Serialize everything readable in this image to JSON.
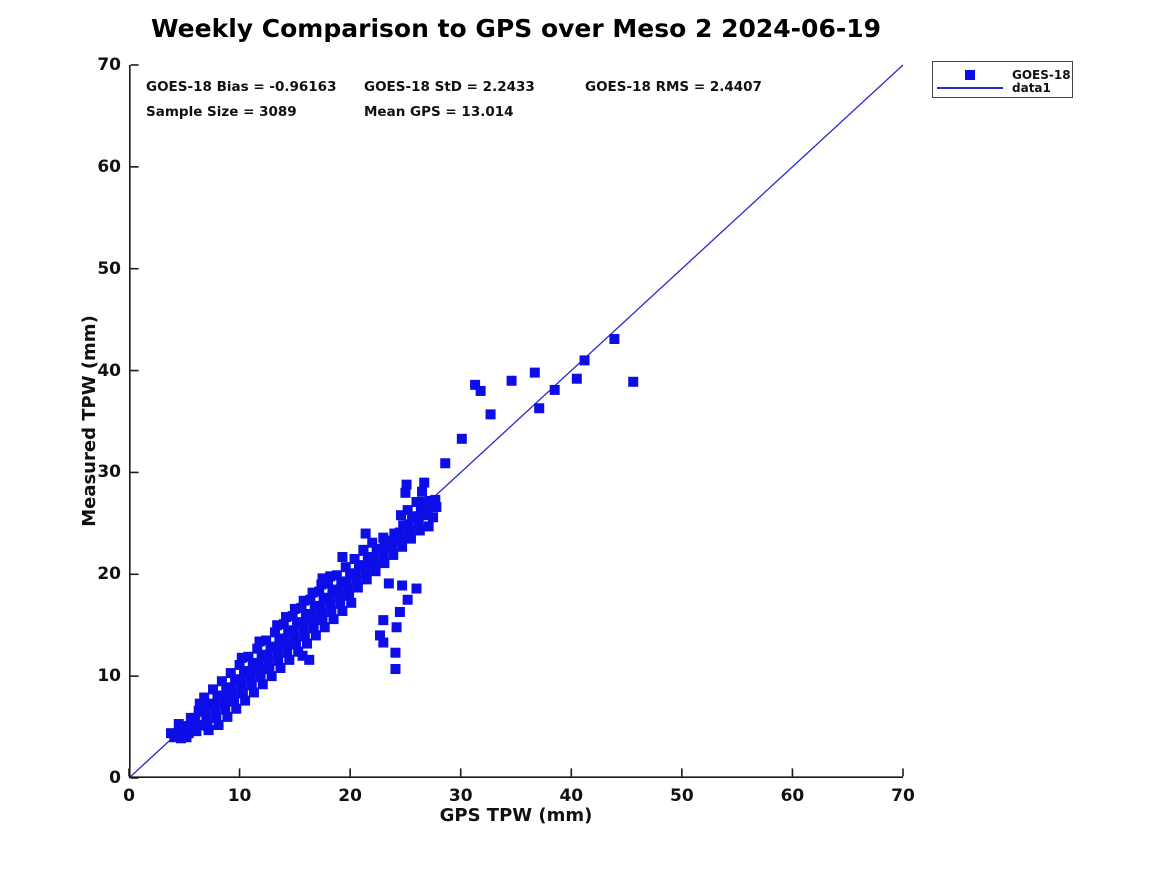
{
  "title": "Weekly Comparison to GPS over Meso 2 2024-06-19",
  "stats": {
    "bias": "GOES-18 Bias = -0.96163",
    "std": "GOES-18 StD = 2.2433",
    "rms": "GOES-18 RMS = 2.4407",
    "sample_size": "Sample Size = 3089",
    "mean_gps": "Mean GPS = 13.014"
  },
  "axes": {
    "xlabel": "GPS TPW (mm)",
    "ylabel": "Measured TPW (mm)",
    "xlim": [
      0,
      70
    ],
    "ylim": [
      0,
      70
    ],
    "xticks": [
      0,
      10,
      20,
      30,
      40,
      50,
      60,
      70
    ],
    "yticks": [
      0,
      10,
      20,
      30,
      40,
      50,
      60,
      70
    ]
  },
  "legend": {
    "entries": [
      {
        "label": "GOES-18",
        "type": "marker"
      },
      {
        "label": "data1",
        "type": "line"
      }
    ]
  },
  "colors": {
    "marker": "#0d0de8",
    "line": "#2929c8",
    "axis": "#1a1a1a",
    "text": "#111111"
  },
  "chart_data": {
    "type": "scatter",
    "title": "Weekly Comparison to GPS over Meso 2 2024-06-19",
    "xlabel": "GPS TPW (mm)",
    "ylabel": "Measured TPW (mm)",
    "xlim": [
      0,
      70
    ],
    "ylim": [
      0,
      70
    ],
    "grid": false,
    "legend_position": "top-right-outside",
    "annotations": [
      "GOES-18 Bias = -0.96163",
      "GOES-18 StD = 2.2433",
      "GOES-18 RMS = 2.4407",
      "Sample Size = 3089",
      "Mean GPS = 13.014"
    ],
    "series": [
      {
        "name": "GOES-18",
        "type": "scatter",
        "marker": "square",
        "points": [
          [
            3.8,
            4.4
          ],
          [
            4.1,
            4
          ],
          [
            4.6,
            4.6
          ],
          [
            4.7,
            3.9
          ],
          [
            4.5,
            5.3
          ],
          [
            5.4,
            4.4
          ],
          [
            5.3,
            5.1
          ],
          [
            5.6,
            5.9
          ],
          [
            5.2,
            4
          ],
          [
            6.2,
            5.2
          ],
          [
            6,
            5.9
          ],
          [
            6.3,
            6.6
          ],
          [
            6.1,
            4.6
          ],
          [
            6.4,
            7.3
          ],
          [
            7,
            5.8
          ],
          [
            6.9,
            6.5
          ],
          [
            7.2,
            7.2
          ],
          [
            7.1,
            5.1
          ],
          [
            6.8,
            7.9
          ],
          [
            7.2,
            4.7
          ],
          [
            7.8,
            6.6
          ],
          [
            7.7,
            7.3
          ],
          [
            8,
            8
          ],
          [
            7.9,
            5.9
          ],
          [
            7.6,
            8.7
          ],
          [
            8.1,
            5.2
          ],
          [
            8.6,
            7.4
          ],
          [
            8.5,
            8.1
          ],
          [
            8.8,
            8.8
          ],
          [
            8.7,
            6.7
          ],
          [
            8.4,
            9.5
          ],
          [
            8.9,
            6
          ],
          [
            9.4,
            8.2
          ],
          [
            9.3,
            8.9
          ],
          [
            9.6,
            9.6
          ],
          [
            9.5,
            7.5
          ],
          [
            9.2,
            10.3
          ],
          [
            9.7,
            6.8
          ],
          [
            10.2,
            9
          ],
          [
            10.1,
            9.7
          ],
          [
            10.4,
            10.4
          ],
          [
            10.3,
            8.3
          ],
          [
            10,
            11.1
          ],
          [
            10.5,
            7.6
          ],
          [
            10.2,
            11.8
          ],
          [
            11,
            9.8
          ],
          [
            10.9,
            10.5
          ],
          [
            11.2,
            11.2
          ],
          [
            11.1,
            9.1
          ],
          [
            10.8,
            11.9
          ],
          [
            11.3,
            8.4
          ],
          [
            11.8,
            10.6
          ],
          [
            11.7,
            11.3
          ],
          [
            12,
            12
          ],
          [
            11.9,
            9.9
          ],
          [
            11.6,
            12.7
          ],
          [
            12.1,
            9.2
          ],
          [
            11.8,
            13.4
          ],
          [
            12.6,
            11.4
          ],
          [
            12.5,
            12.1
          ],
          [
            12.8,
            12.8
          ],
          [
            12.7,
            10.7
          ],
          [
            12.4,
            13.5
          ],
          [
            12.9,
            10
          ],
          [
            13.4,
            12.2
          ],
          [
            13.3,
            12.9
          ],
          [
            13.6,
            13.6
          ],
          [
            13.5,
            11.5
          ],
          [
            13.2,
            14.3
          ],
          [
            13.7,
            10.8
          ],
          [
            13.4,
            15
          ],
          [
            14.2,
            13
          ],
          [
            14.1,
            13.7
          ],
          [
            14.4,
            14.4
          ],
          [
            14.3,
            12.3
          ],
          [
            14,
            15.1
          ],
          [
            14.5,
            11.6
          ],
          [
            14.2,
            15.8
          ],
          [
            15,
            13.8
          ],
          [
            14.9,
            14.5
          ],
          [
            15.2,
            15.2
          ],
          [
            15.1,
            13.1
          ],
          [
            14.8,
            15.9
          ],
          [
            15.3,
            12.4
          ],
          [
            15,
            16.6
          ],
          [
            15.8,
            14.6
          ],
          [
            15.7,
            15.3
          ],
          [
            16,
            16
          ],
          [
            15.9,
            13.9
          ],
          [
            15.6,
            16.7
          ],
          [
            16.1,
            13.2
          ],
          [
            15.8,
            17.4
          ],
          [
            16.6,
            15.4
          ],
          [
            16.5,
            16.1
          ],
          [
            16.8,
            16.8
          ],
          [
            16.7,
            14.7
          ],
          [
            16.4,
            17.5
          ],
          [
            16.9,
            14
          ],
          [
            16.6,
            18.2
          ],
          [
            17.4,
            16.2
          ],
          [
            17.3,
            16.9
          ],
          [
            17.6,
            17.6
          ],
          [
            17.5,
            15.5
          ],
          [
            17.2,
            18.3
          ],
          [
            17.7,
            14.8
          ],
          [
            17.4,
            19
          ],
          [
            17.5,
            19.6
          ],
          [
            18.2,
            17
          ],
          [
            18.1,
            17.7
          ],
          [
            18.4,
            18.4
          ],
          [
            18.3,
            16.3
          ],
          [
            18,
            19.1
          ],
          [
            18.5,
            15.6
          ],
          [
            18.2,
            19.8
          ],
          [
            19,
            17.8
          ],
          [
            18.9,
            18.5
          ],
          [
            19.2,
            19.2
          ],
          [
            19.1,
            17.1
          ],
          [
            18.8,
            19.9
          ],
          [
            19.3,
            16.4
          ],
          [
            19.8,
            18.6
          ],
          [
            19.7,
            19.3
          ],
          [
            20,
            20
          ],
          [
            19.9,
            17.9
          ],
          [
            19.6,
            20.7
          ],
          [
            20.1,
            17.2
          ],
          [
            20.6,
            19.4
          ],
          [
            20.5,
            20.1
          ],
          [
            20.8,
            20.8
          ],
          [
            20.7,
            18.7
          ],
          [
            20.4,
            21.5
          ],
          [
            21.4,
            20.2
          ],
          [
            21.3,
            20.9
          ],
          [
            21.6,
            21.6
          ],
          [
            21.5,
            19.5
          ],
          [
            21.2,
            22.3
          ],
          [
            21.4,
            24
          ],
          [
            22.2,
            21
          ],
          [
            22.1,
            21.7
          ],
          [
            22.4,
            22.4
          ],
          [
            22.3,
            20.3
          ],
          [
            22,
            23.1
          ],
          [
            23,
            21.8
          ],
          [
            22.9,
            22.5
          ],
          [
            23.2,
            23.2
          ],
          [
            23.1,
            21.1
          ],
          [
            23,
            23.6
          ],
          [
            23.8,
            22.6
          ],
          [
            23.7,
            23.3
          ],
          [
            24,
            24
          ],
          [
            23.9,
            21.9
          ],
          [
            24.6,
            23.4
          ],
          [
            24.5,
            24.1
          ],
          [
            24.8,
            24.8
          ],
          [
            24.7,
            22.7
          ],
          [
            24.6,
            25.8
          ],
          [
            25.4,
            24.2
          ],
          [
            25.3,
            24.9
          ],
          [
            25.6,
            25.6
          ],
          [
            25.5,
            23.5
          ],
          [
            25.2,
            26.3
          ],
          [
            26.2,
            25
          ],
          [
            26.1,
            25.7
          ],
          [
            26.4,
            26.4
          ],
          [
            26.3,
            24.3
          ],
          [
            26,
            27.1
          ],
          [
            27,
            25.8
          ],
          [
            26.9,
            26.5
          ],
          [
            27.2,
            27.2
          ],
          [
            27.1,
            24.7
          ],
          [
            27.8,
            26.6
          ],
          [
            27.7,
            27.3
          ],
          [
            30.1,
            33.3
          ],
          [
            31.3,
            38.6
          ],
          [
            31.8,
            38
          ],
          [
            32.7,
            35.7
          ],
          [
            34.6,
            39
          ],
          [
            36.7,
            39.8
          ],
          [
            37.1,
            36.3
          ],
          [
            38.5,
            38.1
          ],
          [
            40.5,
            39.2
          ],
          [
            41.2,
            41
          ],
          [
            43.9,
            43.1
          ],
          [
            45.6,
            38.9
          ],
          [
            28.6,
            30.9
          ],
          [
            25.1,
            28.8
          ],
          [
            25,
            28
          ],
          [
            26.7,
            29
          ],
          [
            26.5,
            28.1
          ],
          [
            26.8,
            27.1
          ],
          [
            27.1,
            26.8
          ],
          [
            27.5,
            25.6
          ],
          [
            23,
            15.5
          ],
          [
            24.2,
            14.8
          ],
          [
            22.7,
            14
          ],
          [
            23,
            13.3
          ],
          [
            24.1,
            12.3
          ],
          [
            24.1,
            10.7
          ],
          [
            24.7,
            18.9
          ],
          [
            23.5,
            19.1
          ],
          [
            26,
            18.6
          ],
          [
            24.5,
            16.3
          ],
          [
            25.2,
            17.5
          ],
          [
            19.3,
            21.7
          ],
          [
            21.2,
            22.4
          ],
          [
            23.1,
            22.7
          ],
          [
            15.7,
            12
          ],
          [
            16.3,
            11.6
          ]
        ]
      },
      {
        "name": "data1",
        "type": "line",
        "points": [
          [
            0,
            0
          ],
          [
            70,
            70
          ]
        ]
      }
    ]
  }
}
